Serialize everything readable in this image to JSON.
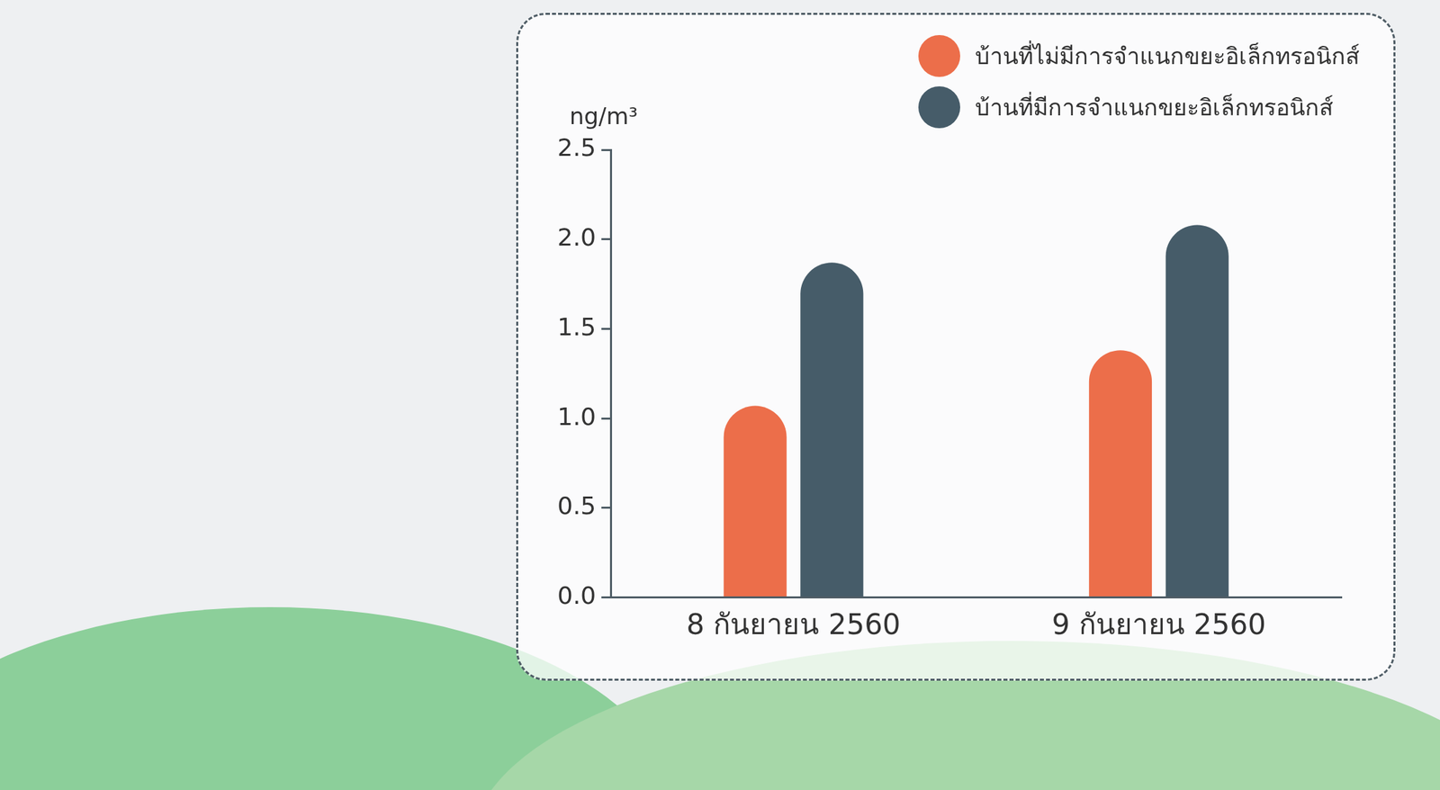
{
  "chart_data": {
    "type": "bar",
    "y_label": "ng/m³",
    "categories": [
      "8 กันยายน 2560",
      "9 กันยายน 2560"
    ],
    "series": [
      {
        "name": "บ้านที่ไม่มีการจำแนกขยะอิเล็กทรอนิกส์",
        "color": "#ec6e4a",
        "values": [
          1.07,
          1.38
        ]
      },
      {
        "name": "บ้านที่มีการจำแนกขยะอิเล็กทรอนิกส์",
        "color": "#465c69",
        "values": [
          1.87,
          2.08
        ]
      }
    ],
    "ylim": [
      0,
      2.5
    ],
    "yticks": [
      {
        "value": 0,
        "label": "0.0"
      },
      0.5,
      {
        "value": 1,
        "label": "1.0"
      },
      1.5,
      {
        "value": 2,
        "label": "2.0"
      },
      2.5
    ],
    "grid": false,
    "legend": "upper right"
  }
}
